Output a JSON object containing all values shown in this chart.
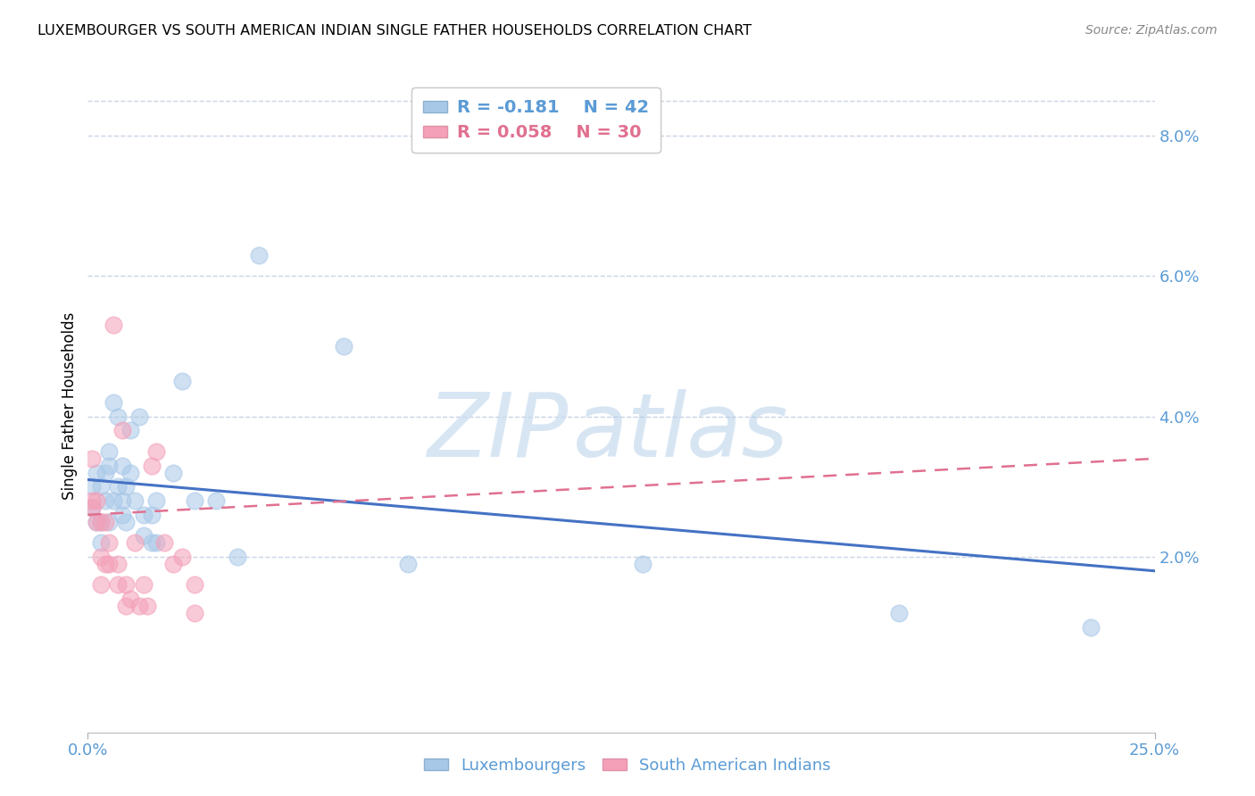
{
  "title": "LUXEMBOURGER VS SOUTH AMERICAN INDIAN SINGLE FATHER HOUSEHOLDS CORRELATION CHART",
  "source": "Source: ZipAtlas.com",
  "ylabel": "Single Father Households",
  "right_yticks": [
    "8.0%",
    "6.0%",
    "4.0%",
    "2.0%"
  ],
  "right_ytick_vals": [
    0.08,
    0.06,
    0.04,
    0.02
  ],
  "xlim": [
    0.0,
    0.25
  ],
  "ylim": [
    -0.005,
    0.088
  ],
  "legend_r1": "R = -0.181",
  "legend_n1": "N = 42",
  "legend_r2": "R = 0.058",
  "legend_n2": "N = 30",
  "color_blue": "#A8C8E8",
  "color_pink": "#F4A0B8",
  "color_line_blue": "#4472C4",
  "color_line_pink": "#E07090",
  "color_axis_blue": "#5B9BD5",
  "color_grid": "#C8D4E4",
  "lux_points_x": [
    0.001,
    0.001,
    0.002,
    0.002,
    0.003,
    0.003,
    0.003,
    0.004,
    0.004,
    0.005,
    0.005,
    0.005,
    0.006,
    0.006,
    0.007,
    0.007,
    0.008,
    0.008,
    0.008,
    0.009,
    0.009,
    0.01,
    0.01,
    0.011,
    0.012,
    0.013,
    0.013,
    0.015,
    0.015,
    0.016,
    0.016,
    0.02,
    0.022,
    0.025,
    0.03,
    0.04,
    0.06,
    0.075,
    0.13,
    0.19,
    0.235,
    0.035
  ],
  "lux_points_y": [
    0.03,
    0.027,
    0.032,
    0.025,
    0.03,
    0.025,
    0.022,
    0.032,
    0.028,
    0.035,
    0.033,
    0.025,
    0.042,
    0.028,
    0.04,
    0.03,
    0.033,
    0.028,
    0.026,
    0.03,
    0.025,
    0.038,
    0.032,
    0.028,
    0.04,
    0.026,
    0.023,
    0.026,
    0.022,
    0.028,
    0.022,
    0.032,
    0.045,
    0.028,
    0.028,
    0.063,
    0.05,
    0.019,
    0.019,
    0.012,
    0.01,
    0.02
  ],
  "sa_points_x": [
    0.001,
    0.001,
    0.001,
    0.002,
    0.002,
    0.003,
    0.003,
    0.003,
    0.004,
    0.004,
    0.005,
    0.005,
    0.006,
    0.007,
    0.007,
    0.008,
    0.009,
    0.009,
    0.01,
    0.011,
    0.012,
    0.013,
    0.014,
    0.015,
    0.016,
    0.018,
    0.02,
    0.022,
    0.025,
    0.025
  ],
  "sa_points_y": [
    0.028,
    0.034,
    0.027,
    0.028,
    0.025,
    0.025,
    0.02,
    0.016,
    0.025,
    0.019,
    0.022,
    0.019,
    0.053,
    0.019,
    0.016,
    0.038,
    0.016,
    0.013,
    0.014,
    0.022,
    0.013,
    0.016,
    0.013,
    0.033,
    0.035,
    0.022,
    0.019,
    0.02,
    0.016,
    0.012
  ],
  "lux_trend_x": [
    0.0,
    0.25
  ],
  "lux_trend_y": [
    0.031,
    0.018
  ],
  "sa_trend_x": [
    0.0,
    0.25
  ],
  "sa_trend_y": [
    0.026,
    0.034
  ]
}
